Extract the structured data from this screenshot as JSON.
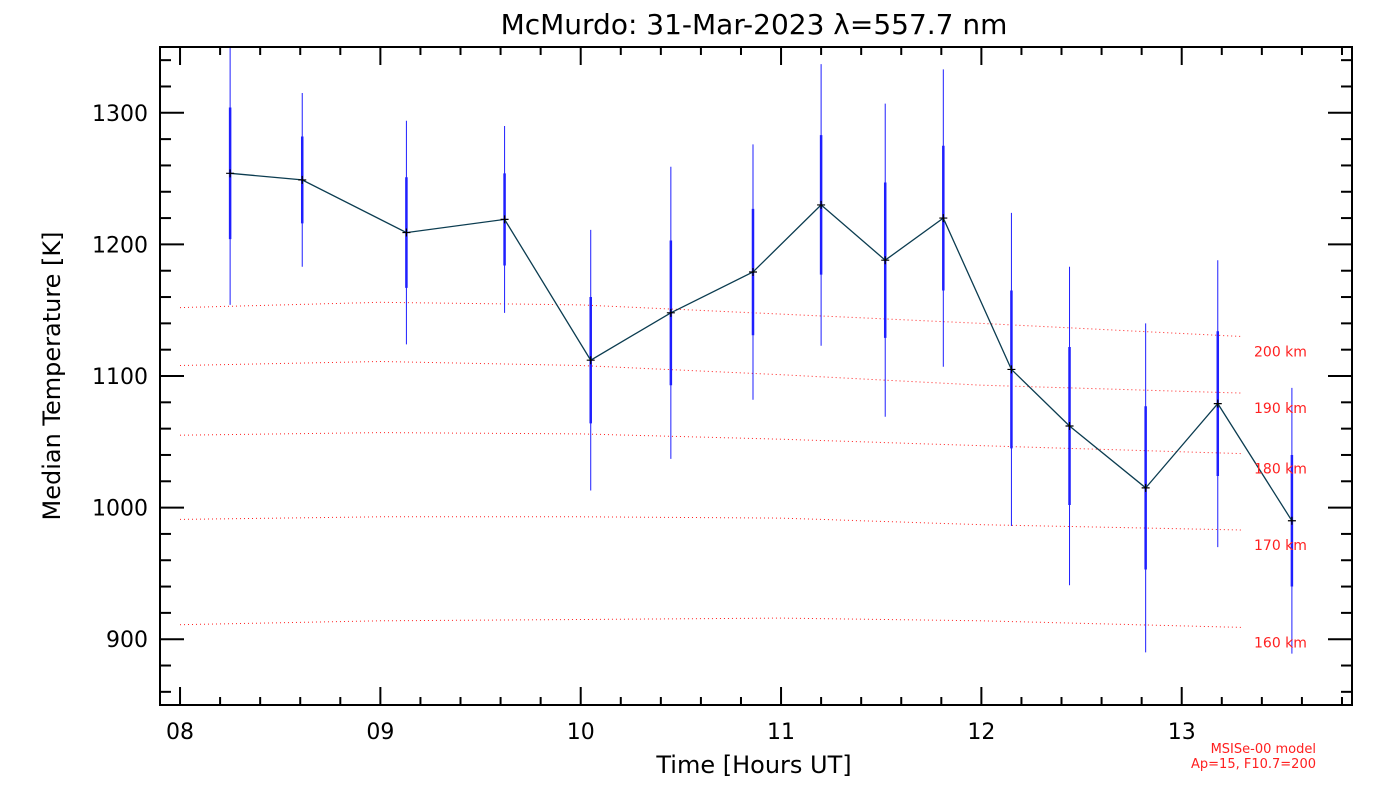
{
  "chart_data": {
    "type": "line",
    "title": "McMurdo: 31-Mar-2023 λ=557.7 nm",
    "xlabel": "Time [Hours UT]",
    "ylabel": "Median Temperature [K]",
    "xlim": [
      7.9,
      13.85
    ],
    "ylim": [
      850,
      1350
    ],
    "x_ticks": [
      8,
      9,
      10,
      11,
      12,
      13
    ],
    "x_tick_labels": [
      "08",
      "09",
      "10",
      "11",
      "12",
      "13"
    ],
    "y_ticks": [
      900,
      1000,
      1100,
      1200,
      1300
    ],
    "y_tick_labels": [
      "900",
      "1000",
      "1100",
      "1200",
      "1300"
    ],
    "colors": {
      "line": "#0b3c50",
      "marker": "#000000",
      "error_bar": "#1f1fff",
      "reference": "#ff2020"
    },
    "series": [
      {
        "x": [
          8.25,
          8.61,
          9.13,
          9.62,
          10.05,
          10.45,
          10.86,
          11.2,
          11.52,
          11.81,
          12.15,
          12.44,
          12.82,
          13.18,
          13.55
        ],
        "y": [
          1254,
          1249,
          1209,
          1219,
          1112,
          1148,
          1179,
          1230,
          1188,
          1220,
          1105,
          1062,
          1015,
          1079,
          990
        ],
        "err_inner": [
          50,
          33,
          42,
          35,
          48,
          55,
          48,
          53,
          59,
          55,
          60,
          60,
          62,
          55,
          50
        ],
        "err_outer": [
          100,
          66,
          85,
          71,
          99,
          111,
          97,
          107,
          119,
          113,
          119,
          121,
          125,
          109,
          101
        ]
      }
    ],
    "reference_curves": [
      {
        "label": "200 km",
        "x": [
          8.0,
          9.0,
          10.0,
          11.0,
          12.0,
          13.3
        ],
        "y": [
          1152,
          1156,
          1154,
          1147,
          1140,
          1130
        ]
      },
      {
        "label": "190 km",
        "x": [
          8.0,
          9.0,
          10.0,
          11.0,
          12.0,
          13.3
        ],
        "y": [
          1108,
          1111,
          1108,
          1101,
          1093,
          1087
        ]
      },
      {
        "label": "180 km",
        "x": [
          8.0,
          9.0,
          10.0,
          11.0,
          12.0,
          13.3
        ],
        "y": [
          1055,
          1057,
          1056,
          1052,
          1047,
          1041
        ]
      },
      {
        "label": "170 km",
        "x": [
          8.0,
          9.0,
          10.0,
          11.0,
          12.0,
          13.3
        ],
        "y": [
          991,
          993,
          993,
          992,
          987,
          983
        ]
      },
      {
        "label": "160 km",
        "x": [
          8.0,
          9.0,
          10.0,
          11.0,
          12.0,
          13.3
        ],
        "y": [
          911,
          914,
          915,
          916,
          914,
          909
        ]
      }
    ],
    "notes": [
      "MSISe-00 model",
      "Ap=15, F10.7=200"
    ]
  }
}
